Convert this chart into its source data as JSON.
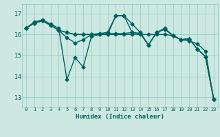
{
  "xlabel": "Humidex (Indice chaleur)",
  "bg_color": "#cce8e0",
  "line_color": "#006060",
  "grid_color": "#99cccc",
  "x_ticks": [
    0,
    1,
    2,
    3,
    4,
    5,
    6,
    7,
    8,
    9,
    10,
    11,
    12,
    13,
    14,
    15,
    16,
    17,
    18,
    19,
    20,
    21,
    22,
    23
  ],
  "y_ticks": [
    13,
    14,
    15,
    16,
    17
  ],
  "xlim": [
    -0.5,
    23.5
  ],
  "ylim": [
    12.55,
    17.45
  ],
  "lines": [
    [
      16.3,
      16.6,
      16.7,
      16.5,
      16.3,
      13.85,
      14.9,
      14.45,
      15.9,
      16.0,
      16.05,
      16.05,
      16.05,
      16.1,
      16.05,
      15.5,
      16.1,
      16.25,
      15.95,
      15.75,
      15.8,
      15.3,
      14.95,
      12.9
    ],
    [
      16.3,
      16.55,
      16.65,
      16.45,
      16.2,
      16.1,
      16.0,
      16.0,
      16.0,
      16.0,
      16.0,
      16.9,
      16.9,
      16.1,
      16.05,
      15.5,
      16.1,
      16.25,
      15.95,
      15.75,
      15.8,
      15.3,
      14.95,
      12.9
    ],
    [
      16.3,
      16.55,
      16.65,
      16.45,
      16.2,
      16.1,
      16.0,
      16.0,
      16.0,
      16.0,
      16.0,
      16.0,
      16.0,
      16.0,
      16.0,
      16.0,
      16.0,
      16.0,
      15.95,
      15.75,
      15.7,
      15.55,
      15.2,
      12.9
    ],
    [
      16.3,
      16.55,
      16.65,
      16.45,
      16.2,
      15.85,
      15.6,
      15.75,
      16.0,
      16.05,
      16.1,
      16.9,
      16.9,
      16.5,
      16.1,
      15.5,
      16.1,
      16.3,
      15.95,
      15.75,
      15.8,
      15.3,
      14.95,
      12.9
    ]
  ],
  "marker": "D",
  "markersize": 2.5,
  "linewidth": 1.0
}
